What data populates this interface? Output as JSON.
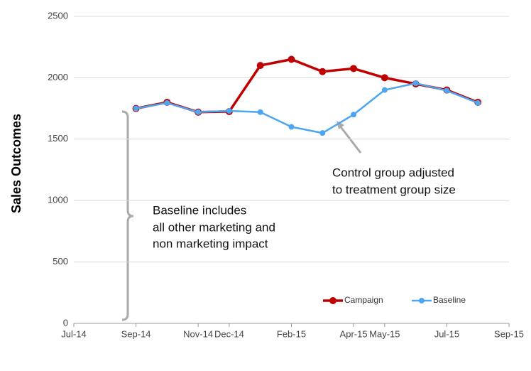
{
  "chart_data": {
    "type": "line",
    "y_label": "Sales Outcomes",
    "x": [
      "2014-09",
      "2014-10",
      "2014-11",
      "2014-12",
      "2015-01",
      "2015-02",
      "2015-03",
      "2015-04",
      "2015-05",
      "2015-06",
      "2015-07",
      "2015-08"
    ],
    "series": [
      {
        "name": "Campaign",
        "color": "#c00000",
        "values": [
          1750,
          1800,
          1720,
          1725,
          2100,
          2150,
          2050,
          2075,
          2000,
          1950,
          1900,
          1800
        ]
      },
      {
        "name": "Baseline",
        "color": "#4da6ef",
        "values": [
          1750,
          1795,
          1720,
          1730,
          1720,
          1600,
          1550,
          1700,
          1900,
          1955,
          1895,
          1795
        ]
      }
    ],
    "xlim": [
      "2014-07",
      "2015-09"
    ],
    "xticks": [
      {
        "value": "2014-07",
        "label": "Jul-14"
      },
      {
        "value": "2014-09",
        "label": "Sep-14"
      },
      {
        "value": "2014-11",
        "label": "Nov-14"
      },
      {
        "value": "2014-12",
        "label": "Dec-14"
      },
      {
        "value": "2015-02",
        "label": "Feb-15"
      },
      {
        "value": "2015-04",
        "label": "Apr-15"
      },
      {
        "value": "2015-05",
        "label": "May-15"
      },
      {
        "value": "2015-07",
        "label": "Jul-15"
      },
      {
        "value": "2015-09",
        "label": "Sep-15"
      }
    ],
    "ylim": [
      0,
      2500
    ],
    "yticks": [
      0,
      500,
      1000,
      1500,
      2000,
      2500
    ],
    "grid": true,
    "legend": "lower right",
    "annotations": [
      [
        "Baseline includes",
        "all other marketing and",
        "non marketing impact"
      ],
      [
        "Control group adjusted",
        "to treatment group size"
      ]
    ]
  }
}
